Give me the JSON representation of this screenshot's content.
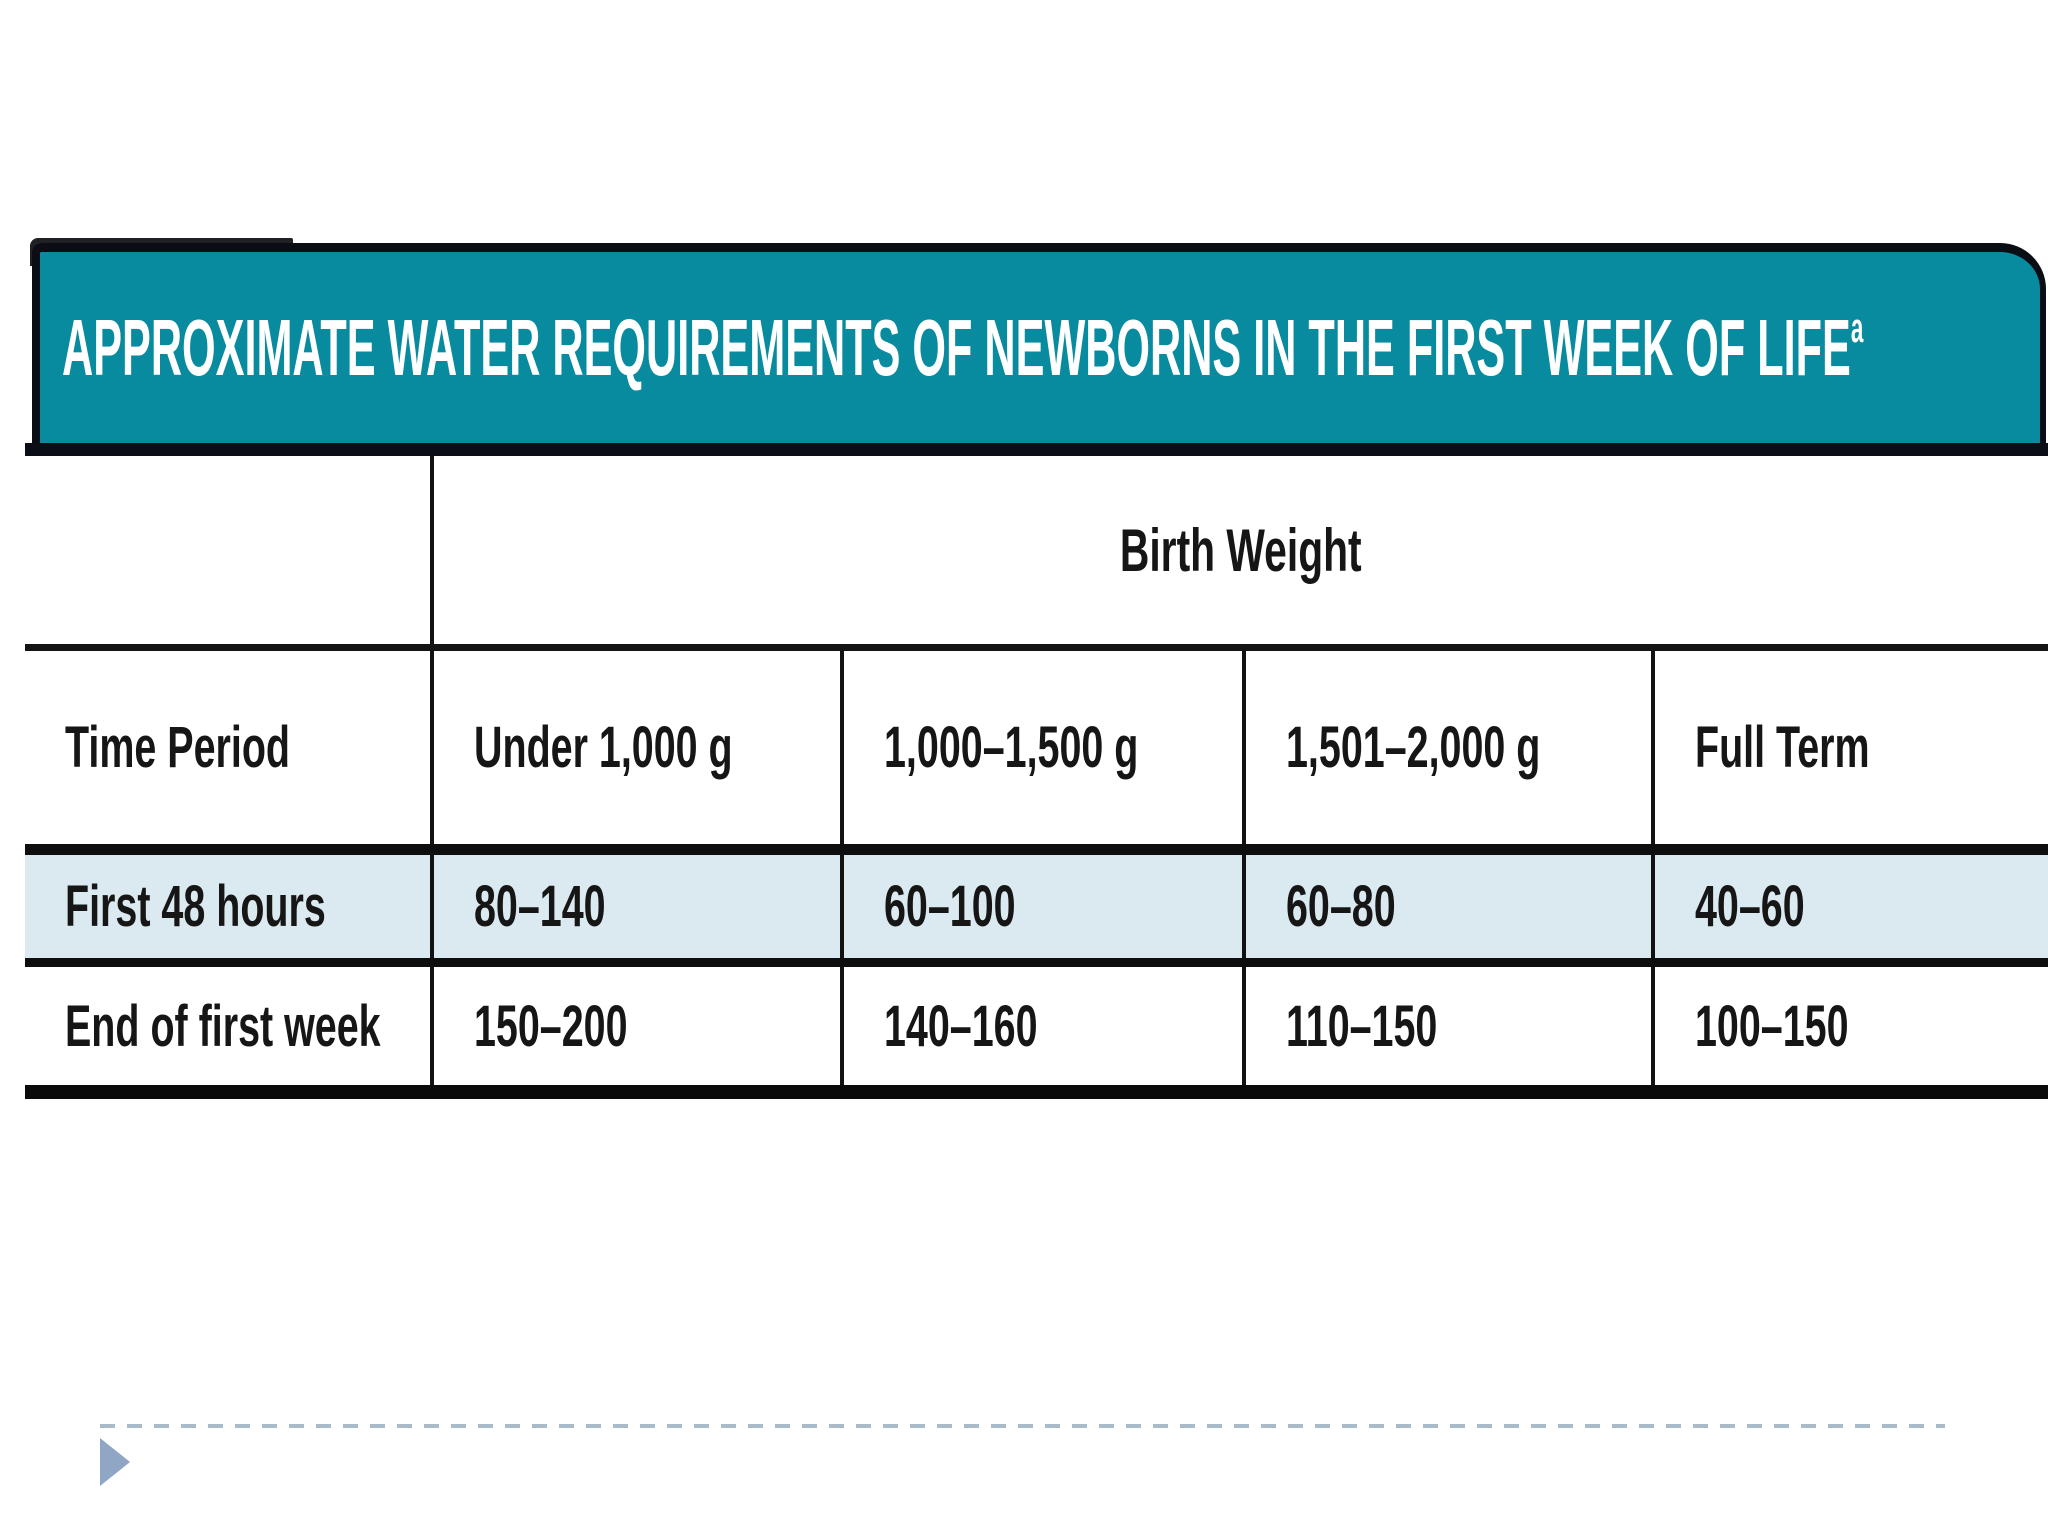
{
  "title": {
    "text": "APPROXIMATE WATER REQUIREMENTS OF NEWBORNS IN THE FIRST WEEK OF LIFE",
    "superscript": "a"
  },
  "table": {
    "span_header": "Birth Weight",
    "columns": [
      "Time Period",
      "Under 1,000 g",
      "1,000–1,500 g",
      "1,501–2,000 g",
      "Full Term"
    ],
    "rows": [
      {
        "label": "First 48 hours",
        "values": [
          "80–140",
          "60–100",
          "60–80",
          "40–60"
        ]
      },
      {
        "label": "End of first week",
        "values": [
          "150–200",
          "140–160",
          "110–150",
          "100–150"
        ]
      }
    ]
  },
  "colors": {
    "banner_teal": "#098b9f",
    "banner_border": "#0a0d14",
    "row_highlight": "#dbe9f0",
    "table_line": "#121212",
    "dashed_line": "#a9bbc9",
    "nav_triangle": "#8fa6c4"
  }
}
